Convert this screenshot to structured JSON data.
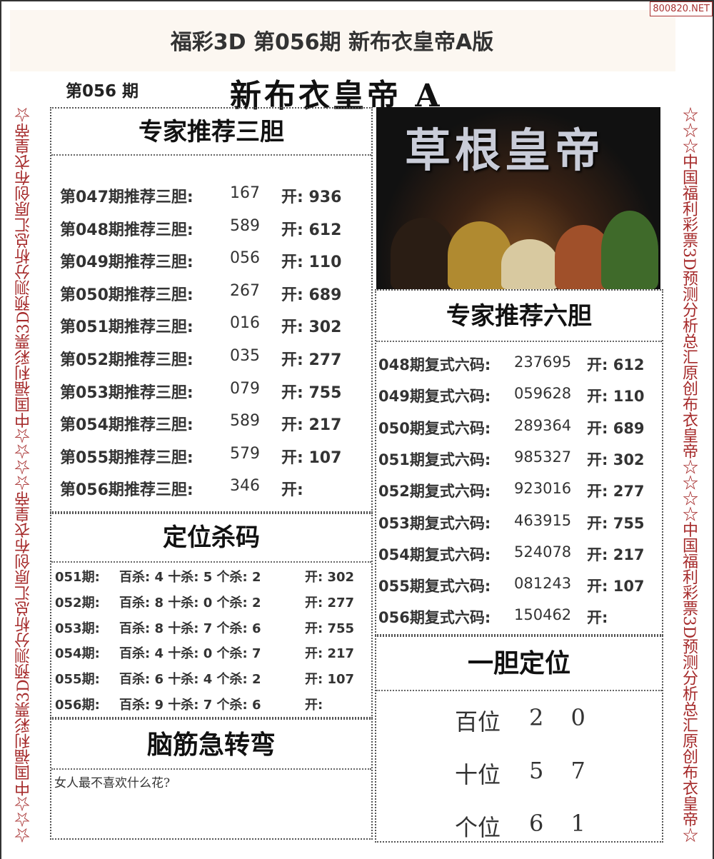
{
  "watermark": "800820.NET",
  "title": "福彩3D 第056期 新布衣皇帝A版",
  "issue": "第056 期",
  "brand": "新布衣皇帝 A",
  "side_text": "☆☆☆中国福利彩票3D预测分析总汇原创布衣皇帝☆☆☆☆中国福利彩票3D预测分析总汇原创布衣皇帝☆",
  "poster_title": "草根皇帝",
  "three": {
    "title": "专家推荐三胆",
    "rows": [
      {
        "label": "第047期推荐三胆:",
        "pick": "167",
        "open": "开: 936"
      },
      {
        "label": "第048期推荐三胆:",
        "pick": "589",
        "open": "开: 612"
      },
      {
        "label": "第049期推荐三胆:",
        "pick": "056",
        "open": "开: 110"
      },
      {
        "label": "第050期推荐三胆:",
        "pick": "267",
        "open": "开: 689"
      },
      {
        "label": "第051期推荐三胆:",
        "pick": "016",
        "open": "开: 302"
      },
      {
        "label": "第052期推荐三胆:",
        "pick": "035",
        "open": "开: 277"
      },
      {
        "label": "第053期推荐三胆:",
        "pick": "079",
        "open": "开: 755"
      },
      {
        "label": "第054期推荐三胆:",
        "pick": "589",
        "open": "开: 217"
      },
      {
        "label": "第055期推荐三胆:",
        "pick": "579",
        "open": "开: 107"
      },
      {
        "label": "第056期推荐三胆:",
        "pick": "346",
        "open": "开:"
      }
    ]
  },
  "kill": {
    "title": "定位杀码",
    "rows": [
      {
        "label": "051期:",
        "kill": "百杀: 4 十杀: 5 个杀: 2",
        "open": "开: 302"
      },
      {
        "label": "052期:",
        "kill": "百杀: 8 十杀: 0 个杀: 2",
        "open": "开: 277"
      },
      {
        "label": "053期:",
        "kill": "百杀: 8 十杀: 7 个杀: 6",
        "open": "开: 755"
      },
      {
        "label": "054期:",
        "kill": "百杀: 4 十杀: 0 个杀: 7",
        "open": "开: 217"
      },
      {
        "label": "055期:",
        "kill": "百杀: 6 十杀: 4 个杀: 2",
        "open": "开: 107"
      },
      {
        "label": "056期:",
        "kill": "百杀: 9 十杀: 7 个杀: 6",
        "open": "开:"
      }
    ]
  },
  "riddle": {
    "title": "脑筋急转弯",
    "question": "女人最不喜欢什么花?"
  },
  "six": {
    "title": "专家推荐六胆",
    "rows": [
      {
        "label": "048期复式六码:",
        "pick": "237695",
        "open": "开: 612"
      },
      {
        "label": "049期复式六码:",
        "pick": "059628",
        "open": "开: 110"
      },
      {
        "label": "050期复式六码:",
        "pick": "289364",
        "open": "开: 689"
      },
      {
        "label": "051期复式六码:",
        "pick": "985327",
        "open": "开: 302"
      },
      {
        "label": "052期复式六码:",
        "pick": "923016",
        "open": "开: 277"
      },
      {
        "label": "053期复式六码:",
        "pick": "463915",
        "open": "开: 755"
      },
      {
        "label": "054期复式六码:",
        "pick": "524078",
        "open": "开: 217"
      },
      {
        "label": "055期复式六码:",
        "pick": "081243",
        "open": "开: 107"
      },
      {
        "label": "056期复式六码:",
        "pick": "150462",
        "open": "开:"
      }
    ]
  },
  "one": {
    "title": "一胆定位",
    "rows": [
      {
        "label": "百位",
        "value": "2 0"
      },
      {
        "label": "十位",
        "value": "5 7"
      },
      {
        "label": "个位",
        "value": "6 1"
      }
    ]
  }
}
